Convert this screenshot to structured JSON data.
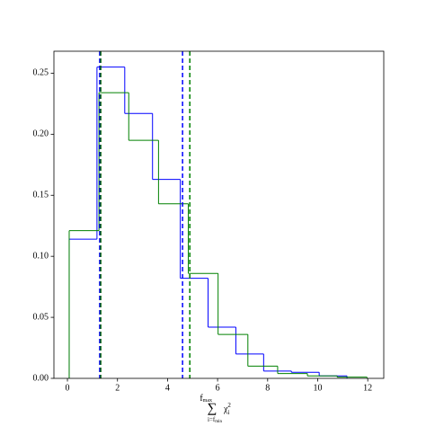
{
  "chart_data": {
    "type": "step-histogram",
    "xlabel": {
      "symbol": "∑",
      "upper": "f",
      "upper_sub": "max",
      "lower": "i=f",
      "lower_sub": "min",
      "term": "χ",
      "term_sub": "i",
      "term_sup": "2"
    },
    "xlim": [
      -0.54,
      12.64
    ],
    "ylim": [
      0,
      0.268
    ],
    "xticks": [
      0,
      2,
      4,
      6,
      8,
      10,
      12
    ],
    "yticks": [
      {
        "value": 0,
        "label": "0.00"
      },
      {
        "value": 0.05,
        "label": "0.05"
      },
      {
        "value": 0.1,
        "label": "0.10"
      },
      {
        "value": 0.15,
        "label": "0.15"
      },
      {
        "value": 0.2,
        "label": "0.20"
      },
      {
        "value": 0.25,
        "label": "0.25"
      }
    ],
    "series": [
      {
        "color": "#0000ff",
        "bins": [
          0.07,
          1.18,
          2.29,
          3.4,
          4.51,
          5.62,
          6.73,
          7.84,
          8.95,
          10.06,
          11.17
        ],
        "values": [
          0.114,
          0.255,
          0.217,
          0.163,
          0.082,
          0.042,
          0.02,
          0.006,
          0.005,
          0.002
        ]
      },
      {
        "color": "#008000",
        "bins": [
          0.07,
          1.26,
          2.45,
          3.64,
          4.83,
          6.02,
          7.21,
          8.4,
          9.59,
          10.78,
          11.97
        ],
        "values": [
          0.121,
          0.234,
          0.195,
          0.143,
          0.086,
          0.036,
          0.01,
          0.004,
          0.002,
          0.001
        ]
      }
    ],
    "vlines": [
      {
        "x": 1.29,
        "color": "#0000ff"
      },
      {
        "x": 4.6,
        "color": "#0000ff"
      },
      {
        "x": 1.33,
        "color": "#006400"
      },
      {
        "x": 4.89,
        "color": "#008000"
      }
    ]
  }
}
